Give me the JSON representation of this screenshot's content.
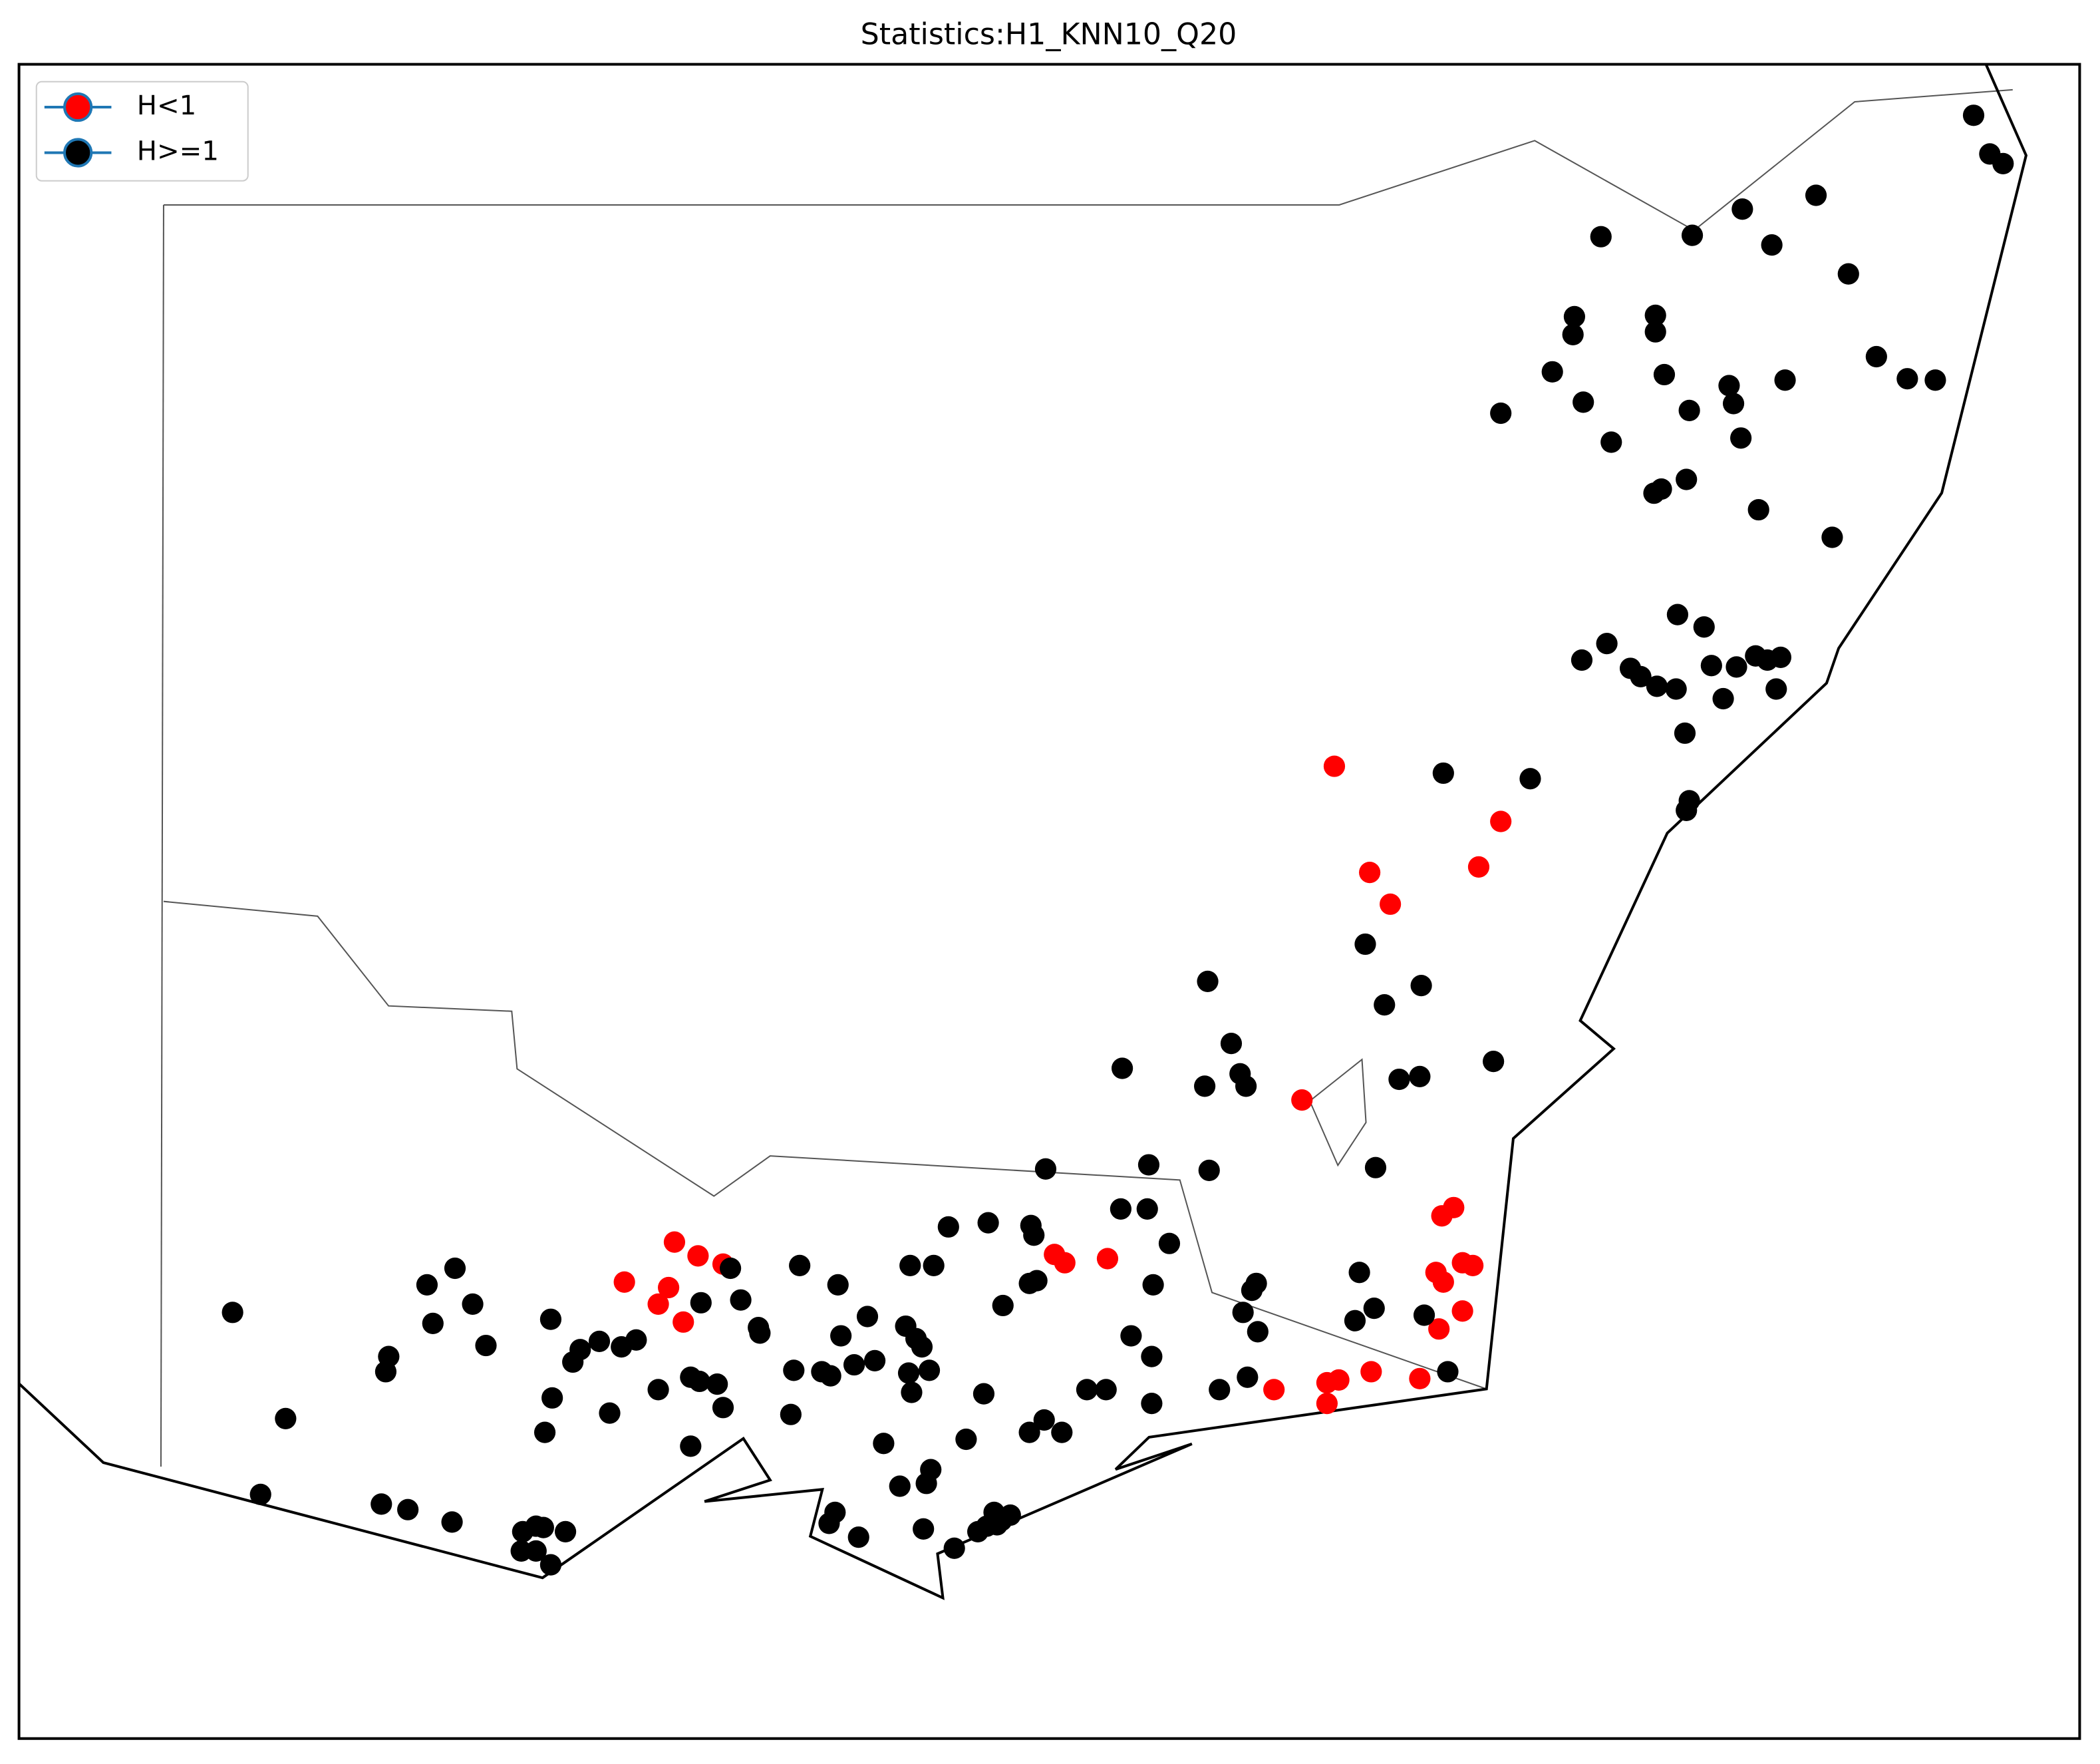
{
  "chart_data": {
    "type": "scatter",
    "title": "Statistics:H1_KNN10_Q20",
    "xlim": [
      140.04,
      154.03
    ],
    "ylim": [
      -40.12,
      -27.98
    ],
    "legend": "upper left",
    "marker_edge_color": "#1f77b4",
    "series": [
      {
        "name": "H<1",
        "color": "#ff0000",
        "x": [
          148.97,
          150.1,
          149.95,
          149.21,
          149.35,
          148.75,
          149.78,
          149.7,
          149.66,
          149.71,
          149.84,
          149.91,
          149.84,
          149.68,
          149.22,
          149.55,
          149.0,
          148.92,
          148.92,
          148.56,
          144.49,
          144.65,
          144.82,
          144.15,
          144.45,
          144.38,
          144.55,
          147.07,
          147.14,
          147.43
        ],
        "y": [
          -33.07,
          -33.47,
          -33.8,
          -33.84,
          -34.07,
          -35.49,
          -36.27,
          -36.33,
          -36.74,
          -36.81,
          -36.67,
          -36.69,
          -37.02,
          -37.15,
          -37.46,
          -37.51,
          -37.52,
          -37.54,
          -37.69,
          -37.59,
          -36.52,
          -36.62,
          -36.68,
          -36.81,
          -36.85,
          -36.97,
          -37.1,
          -36.61,
          -36.67,
          -36.64
        ]
      },
      {
        "name": "H>=1",
        "color": "#000000",
        "x": [
          153.31,
          153.42,
          153.51,
          152.24,
          151.74,
          151.4,
          150.78,
          151.94,
          152.46,
          150.6,
          151.15,
          150.59,
          151.15,
          152.65,
          150.45,
          151.21,
          152.03,
          152.86,
          153.05,
          151.65,
          151.68,
          150.66,
          151.38,
          150.1,
          151.73,
          150.85,
          151.36,
          151.19,
          151.14,
          151.85,
          152.35,
          151.3,
          151.48,
          150.82,
          150.65,
          150.98,
          151.05,
          151.16,
          151.29,
          151.53,
          151.7,
          151.83,
          151.91,
          152.0,
          151.97,
          151.61,
          151.35,
          151.38,
          151.36,
          149.71,
          150.3,
          149.18,
          149.56,
          149.31,
          148.11,
          148.27,
          147.53,
          148.33,
          148.09,
          148.37,
          149.41,
          149.55,
          150.05,
          149.25,
          148.12,
          147.71,
          147.01,
          147.52,
          147.7,
          147.85,
          146.91,
          146.93,
          146.62,
          146.35,
          149.14,
          149.24,
          149.11,
          149.58,
          149.74,
          148.44,
          148.41,
          148.35,
          148.45,
          148.19,
          148.38,
          141.49,
          141.85,
          141.68,
          142.5,
          142.68,
          142.98,
          142.81,
          143.0,
          142.85,
          143.12,
          143.21,
          142.55,
          142.53,
          143.65,
          143.85,
          143.8,
          143.98,
          144.13,
          144.23,
          143.66,
          144.05,
          143.61,
          144.38,
          144.6,
          144.66,
          144.78,
          144.82,
          144.6,
          143.46,
          143.55,
          143.6,
          143.75,
          143.45,
          143.55,
          143.65,
          144.87,
          144.67,
          144.94,
          145.06,
          145.07,
          145.34,
          145.6,
          145.8,
          145.62,
          145.3,
          145.49,
          145.55,
          145.71,
          145.85,
          145.28,
          146.09,
          146.25,
          146.06,
          146.13,
          146.17,
          146.22,
          146.08,
          146.1,
          146.72,
          146.95,
          146.9,
          147.74,
          147.59,
          147.73,
          147.73,
          147.29,
          147.42,
          146.59,
          147.0,
          146.9,
          147.12,
          146.47,
          145.91,
          146.23,
          146.2,
          146.02,
          145.58,
          145.54,
          145.74,
          146.18,
          146.66,
          146.71,
          146.77,
          146.61,
          146.55,
          146.68,
          146.39
        ],
        "y": [
          -28.35,
          -28.63,
          -28.7,
          -28.93,
          -29.03,
          -29.22,
          -29.23,
          -29.29,
          -29.5,
          -29.81,
          -29.8,
          -29.94,
          -29.92,
          -30.1,
          -30.21,
          -30.23,
          -30.27,
          -30.26,
          -30.27,
          -30.31,
          -30.44,
          -30.43,
          -30.49,
          -30.51,
          -30.69,
          -30.72,
          -30.99,
          -31.06,
          -31.09,
          -31.21,
          -31.41,
          -31.97,
          -32.06,
          -32.18,
          -32.3,
          -32.36,
          -32.42,
          -32.49,
          -32.51,
          -32.34,
          -32.35,
          -32.27,
          -32.3,
          -32.28,
          -32.51,
          -32.58,
          -32.83,
          -33.32,
          -33.39,
          -33.12,
          -33.16,
          -34.36,
          -34.66,
          -34.8,
          -34.63,
          -35.08,
          -35.26,
          -35.3,
          -35.39,
          -35.39,
          -35.34,
          -35.32,
          -35.21,
          -35.98,
          -36.0,
          -35.96,
          -35.99,
          -36.28,
          -36.28,
          -36.53,
          -36.4,
          -36.47,
          -36.38,
          -36.41,
          -36.74,
          -37.0,
          -37.09,
          -37.05,
          -37.46,
          -36.82,
          -36.87,
          -37.03,
          -37.17,
          -37.59,
          -37.5,
          -37.03,
          -37.8,
          -38.35,
          -38.42,
          -38.46,
          -38.55,
          -36.83,
          -36.71,
          -37.11,
          -36.97,
          -37.27,
          -37.35,
          -37.46,
          -37.08,
          -37.3,
          -37.39,
          -37.24,
          -37.28,
          -37.23,
          -37.65,
          -37.76,
          -37.9,
          -37.59,
          -37.5,
          -37.53,
          -37.55,
          -37.72,
          -38.0,
          -38.62,
          -38.58,
          -38.59,
          -38.62,
          -38.76,
          -38.76,
          -38.86,
          -36.71,
          -36.96,
          -36.94,
          -37.14,
          -37.18,
          -36.69,
          -36.83,
          -37.06,
          -37.2,
          -37.45,
          -37.46,
          -37.49,
          -37.41,
          -37.38,
          -37.77,
          -36.69,
          -36.69,
          -37.13,
          -37.22,
          -37.28,
          -37.45,
          -37.47,
          -37.61,
          -36.98,
          -36.8,
          -36.82,
          -36.83,
          -37.2,
          -37.35,
          -37.69,
          -37.59,
          -37.59,
          -37.62,
          -37.81,
          -37.9,
          -37.9,
          -37.95,
          -37.98,
          -38.17,
          -38.27,
          -38.29,
          -38.48,
          -38.56,
          -38.66,
          -38.6,
          -38.48,
          -38.54,
          -38.5,
          -38.58,
          -38.62,
          -38.57,
          -38.74
        ]
      }
    ]
  }
}
